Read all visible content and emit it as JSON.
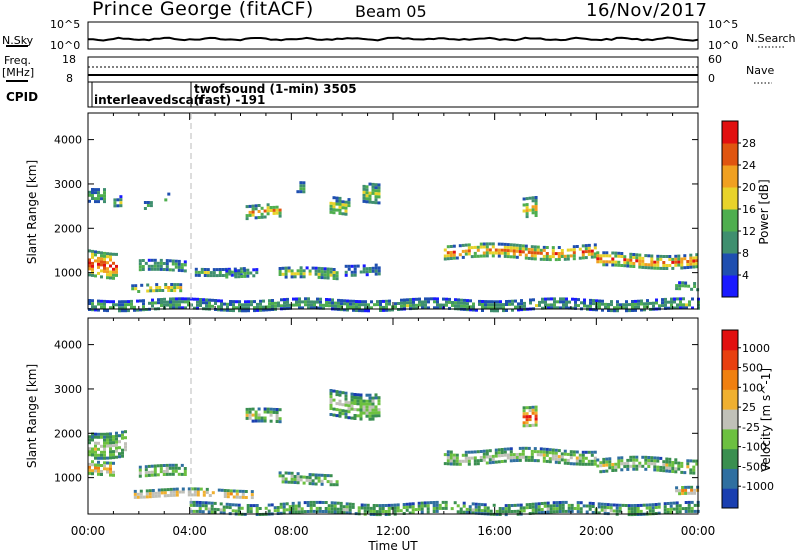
{
  "header": {
    "station": "Prince George (fitACF)",
    "beam": "Beam 05",
    "date": "16/Nov/2017"
  },
  "noise_panel": {
    "left_label": "N.Sky",
    "right_label": "N.Search",
    "left_ticks": [
      "10^5",
      "10^0"
    ],
    "right_ticks": [
      "10^5",
      "10^0"
    ]
  },
  "freq_panel": {
    "left_label_1": "Freq.",
    "left_label_2": "[MHz]",
    "right_label": "Nave",
    "left_ticks": [
      "18",
      "8"
    ],
    "right_ticks": [
      "60",
      "0"
    ]
  },
  "cpid_panel": {
    "label": "CPID",
    "entries": [
      {
        "time_hours": 0.0,
        "text": "interleavedscan"
      },
      {
        "time_hours": 4.0,
        "text_1": "twofsound (1-min) 3505",
        "text_2": "(fast) -191"
      }
    ]
  },
  "time_axis": {
    "label": "Time UT",
    "ticks": [
      "00:00",
      "04:00",
      "08:00",
      "12:00",
      "16:00",
      "20:00",
      "00:00"
    ],
    "range_hours": [
      0,
      24
    ]
  },
  "chart_data": [
    {
      "type": "heatmap",
      "name": "power",
      "ylabel": "Slant Range [km]",
      "yticks": [
        1000,
        2000,
        3000,
        4000
      ],
      "ylim": [
        180,
        4600
      ],
      "xlim_hours": [
        0,
        24
      ],
      "colorbar": {
        "label": "Power [dB]",
        "ticks": [
          "4",
          "8",
          "12",
          "16",
          "20",
          "24",
          "28"
        ],
        "colors": [
          "#1a1aff",
          "#1f4fb0",
          "#3f8f6f",
          "#4fae4f",
          "#e8d32a",
          "#f0a020",
          "#e05510",
          "#e21010"
        ]
      },
      "features": [
        {
          "t_start": 0.0,
          "t_end": 1.1,
          "range_center": 1250,
          "range_width": 550,
          "level": 7
        },
        {
          "t_start": 0.0,
          "t_end": 0.6,
          "range_center": 2800,
          "range_width": 300,
          "level": 3
        },
        {
          "t_start": 1.0,
          "t_end": 1.3,
          "range_center": 2650,
          "range_width": 250,
          "level": 3
        },
        {
          "t_start": 1.7,
          "t_end": 3.6,
          "range_center": 650,
          "range_width": 180,
          "level": 5
        },
        {
          "t_start": 2.0,
          "t_end": 3.8,
          "range_center": 1150,
          "range_width": 250,
          "level": 3
        },
        {
          "t_start": 2.2,
          "t_end": 2.5,
          "range_center": 2500,
          "range_width": 180,
          "level": 3
        },
        {
          "t_start": 3.0,
          "t_end": 3.2,
          "range_center": 2700,
          "range_width": 200,
          "level": 3
        },
        {
          "t_start": 4.2,
          "t_end": 6.2,
          "range_center": 1050,
          "range_width": 150,
          "level": 3
        },
        {
          "t_start": 5.4,
          "t_end": 6.6,
          "range_center": 1000,
          "range_width": 200,
          "level": 3
        },
        {
          "t_start": 6.2,
          "t_end": 7.6,
          "range_center": 2400,
          "range_width": 280,
          "level": 5
        },
        {
          "t_start": 7.5,
          "t_end": 9.8,
          "range_center": 1000,
          "range_width": 220,
          "level": 4
        },
        {
          "t_start": 8.2,
          "t_end": 8.5,
          "range_center": 2900,
          "range_width": 250,
          "level": 3
        },
        {
          "t_start": 9.5,
          "t_end": 10.3,
          "range_center": 2500,
          "range_width": 400,
          "level": 4
        },
        {
          "t_start": 10.8,
          "t_end": 11.5,
          "range_center": 2850,
          "range_width": 450,
          "level": 4
        },
        {
          "t_start": 10.1,
          "t_end": 11.4,
          "range_center": 1100,
          "range_width": 220,
          "level": 2
        },
        {
          "t_start": 14.0,
          "t_end": 20.0,
          "range_center": 1500,
          "range_width": 280,
          "level": 6
        },
        {
          "t_start": 17.1,
          "t_end": 17.6,
          "range_center": 2450,
          "range_width": 450,
          "level": 5
        },
        {
          "t_start": 20.0,
          "t_end": 24.0,
          "range_center": 1300,
          "range_width": 280,
          "level": 6
        },
        {
          "t_start": 23.1,
          "t_end": 24.0,
          "range_center": 700,
          "range_width": 180,
          "level": 4
        },
        {
          "t_start": 0.0,
          "t_end": 24.0,
          "range_center": 300,
          "range_width": 220,
          "level": 3
        }
      ]
    },
    {
      "type": "heatmap",
      "name": "velocity",
      "ylabel": "Slant Range [km]",
      "yticks": [
        1000,
        2000,
        3000,
        4000
      ],
      "ylim": [
        180,
        4600
      ],
      "xlim_hours": [
        0,
        24
      ],
      "colorbar": {
        "label": "Velocity [m s^-1]",
        "ticks": [
          "1000",
          "500",
          "100",
          "25",
          "-25",
          "-100",
          "-500",
          "-1000"
        ],
        "colors": [
          "#1a3fb0",
          "#2f6fa0",
          "#3a8f50",
          "#6cc040",
          "#c0c0b8",
          "#f0b030",
          "#f08010",
          "#e84010",
          "#e21010"
        ]
      },
      "features": [
        {
          "t_start": 0.0,
          "t_end": 1.0,
          "range_center": 1250,
          "range_width": 300,
          "level": 6
        },
        {
          "t_start": 0.0,
          "t_end": 1.5,
          "range_center": 1800,
          "range_width": 600,
          "level": 4
        },
        {
          "t_start": 1.8,
          "t_end": 6.5,
          "range_center": 650,
          "range_width": 200,
          "level": 6
        },
        {
          "t_start": 2.0,
          "t_end": 3.8,
          "range_center": 1150,
          "range_width": 250,
          "level": 4
        },
        {
          "t_start": 6.2,
          "t_end": 7.6,
          "range_center": 2400,
          "range_width": 280,
          "level": 4
        },
        {
          "t_start": 7.5,
          "t_end": 9.8,
          "range_center": 1000,
          "range_width": 220,
          "level": 4
        },
        {
          "t_start": 9.5,
          "t_end": 11.5,
          "range_center": 2700,
          "range_width": 550,
          "level": 4
        },
        {
          "t_start": 14.0,
          "t_end": 20.0,
          "range_center": 1500,
          "range_width": 300,
          "level": 4
        },
        {
          "t_start": 17.1,
          "t_end": 17.6,
          "range_center": 2450,
          "range_width": 450,
          "level": 8
        },
        {
          "t_start": 20.0,
          "t_end": 24.0,
          "range_center": 1300,
          "range_width": 300,
          "level": 4
        },
        {
          "t_start": 23.1,
          "t_end": 24.0,
          "range_center": 700,
          "range_width": 180,
          "level": 6
        },
        {
          "t_start": 4.0,
          "t_end": 24.0,
          "range_center": 320,
          "range_width": 240,
          "level": 3
        }
      ]
    }
  ]
}
